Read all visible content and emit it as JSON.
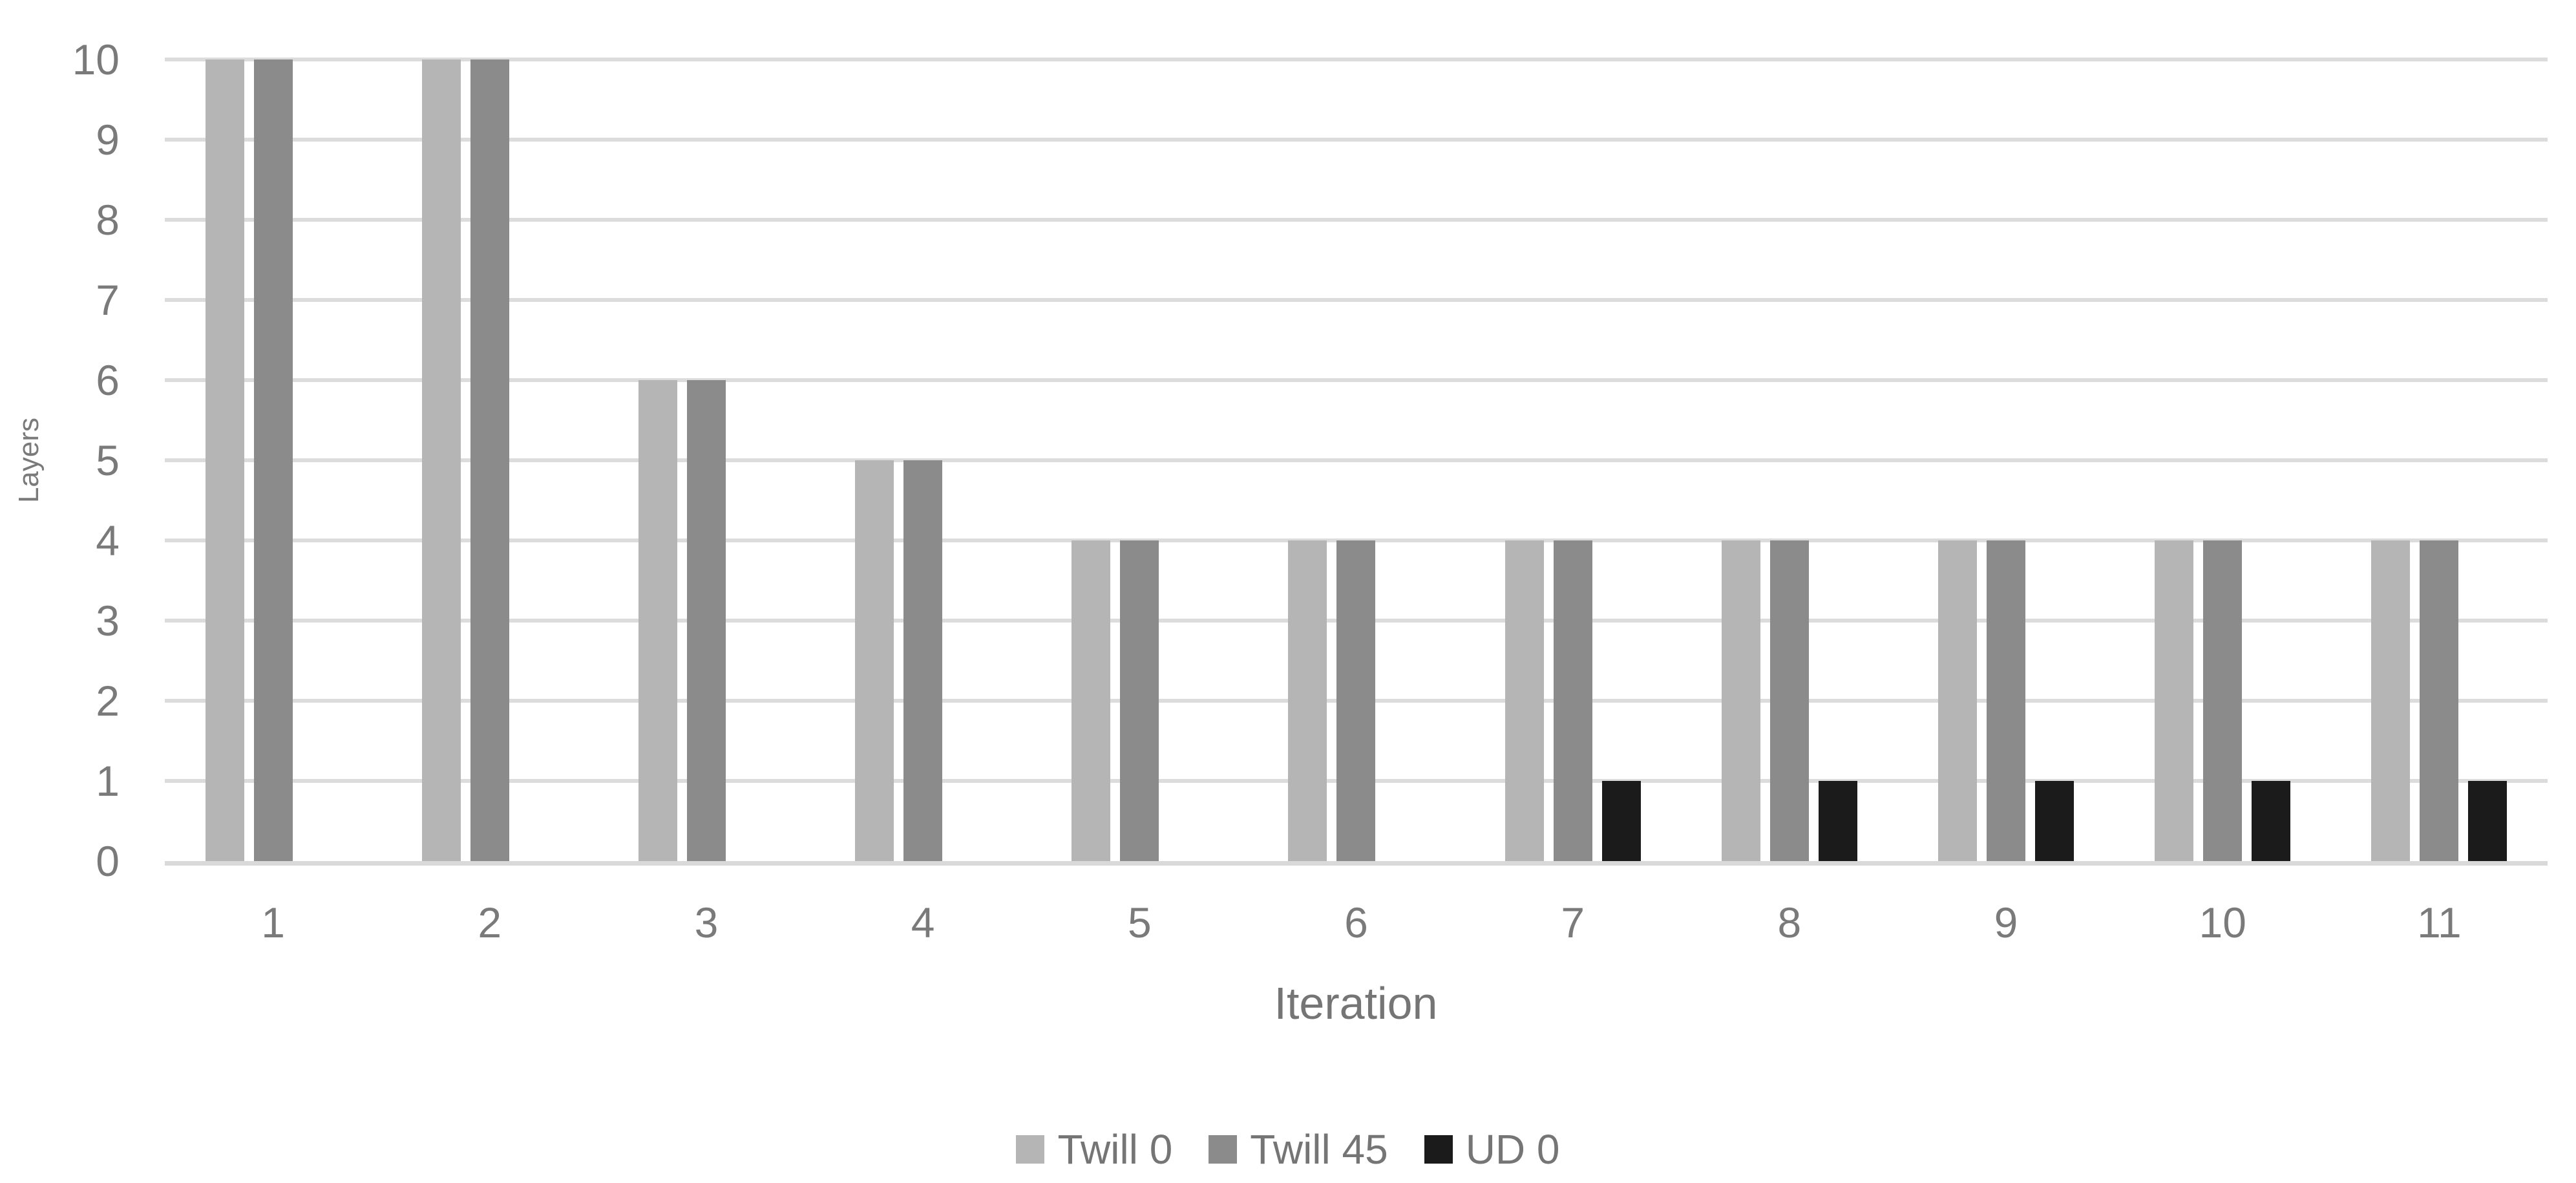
{
  "chart_data": {
    "type": "bar",
    "title": "",
    "xlabel": "Iteration",
    "ylabel": "Layers",
    "categories": [
      "1",
      "2",
      "3",
      "4",
      "5",
      "6",
      "7",
      "8",
      "9",
      "10",
      "11"
    ],
    "series": [
      {
        "name": "Twill 0",
        "color": "#b5b5b5",
        "values": [
          10,
          10,
          6,
          5,
          4,
          4,
          4,
          4,
          4,
          4,
          4
        ]
      },
      {
        "name": "Twill 45",
        "color": "#8b8b8b",
        "values": [
          10,
          10,
          6,
          5,
          4,
          4,
          4,
          4,
          4,
          4,
          4
        ]
      },
      {
        "name": "UD 0",
        "color": "#1b1b1b",
        "values": [
          0,
          0,
          0,
          0,
          0,
          0,
          1,
          1,
          1,
          1,
          1
        ]
      }
    ],
    "ylim": [
      0,
      10
    ],
    "yticks": [
      "0",
      "1",
      "2",
      "3",
      "4",
      "5",
      "6",
      "7",
      "8",
      "9",
      "10"
    ],
    "grid": true,
    "legend_position": "bottom",
    "gridline_color": "#dcdcdc",
    "axis_line_color": "#d9d9d9",
    "tick_text_color": "#7a7a7a",
    "title_text_color": "#757575"
  }
}
